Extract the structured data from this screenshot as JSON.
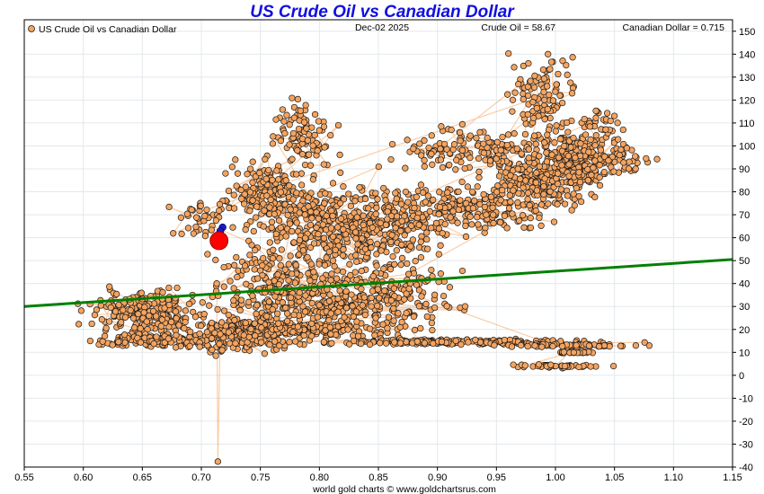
{
  "chart_data": {
    "type": "scatter",
    "title": "US Crude Oil vs Canadian Dollar",
    "legend_label": "US Crude Oil vs Canadian Dollar",
    "date_label": "Dec-02  2025",
    "oil_readout": "Crude Oil = 58.67",
    "cad_readout": "Canadian Dollar = 0.715",
    "footer": "world gold charts © www.goldchartsrus.com",
    "xlabel": "",
    "ylabel": "",
    "xlim": [
      0.55,
      1.15
    ],
    "ylim": [
      -40,
      155
    ],
    "x_ticks": [
      0.55,
      0.6,
      0.65,
      0.7,
      0.75,
      0.8,
      0.85,
      0.9,
      0.95,
      1.0,
      1.05,
      1.1,
      1.15
    ],
    "x_tick_labels": [
      "0.55",
      "0.60",
      "0.65",
      "0.70",
      "0.75",
      "0.80",
      "0.85",
      "0.90",
      "0.95",
      "1.00",
      "1.05",
      "1.10",
      "1.15"
    ],
    "y_ticks": [
      -40,
      -30,
      -20,
      -10,
      0,
      10,
      20,
      30,
      40,
      50,
      60,
      70,
      80,
      90,
      100,
      110,
      120,
      130,
      140,
      150
    ],
    "y_tick_labels": [
      "-40",
      "-30",
      "-20",
      "-10",
      "0",
      "10",
      "20",
      "30",
      "40",
      "50",
      "60",
      "70",
      "80",
      "90",
      "100",
      "110",
      "120",
      "130",
      "140",
      "150"
    ],
    "grid": true,
    "legend_position": "top-left",
    "colors": {
      "points": "#f4a460",
      "point_edge": "#1a1a1a",
      "path": "#f4a460",
      "trend": "#008000",
      "current": "#ff0000",
      "previous": "#1a1acc",
      "title": "#1010e0"
    },
    "trend_line": {
      "x": [
        0.55,
        1.15
      ],
      "y": [
        30,
        50.5
      ]
    },
    "current_point": {
      "x": 0.715,
      "y": 58.67
    },
    "previous_points": [
      {
        "x": 0.718,
        "y": 64.5
      },
      {
        "x": 0.716,
        "y": 62.8
      }
    ],
    "path_outliers": [
      {
        "x": 0.713,
        "y": 40
      },
      {
        "x": 0.714,
        "y": -37.6
      },
      {
        "x": 0.716,
        "y": 18
      }
    ],
    "clusters": [
      {
        "cx": 0.655,
        "cy": 27,
        "sx": 0.025,
        "sy": 5,
        "n": 220
      },
      {
        "cx": 0.655,
        "cy": 15,
        "sx": 0.03,
        "sy": 1.5,
        "n": 120
      },
      {
        "cx": 0.735,
        "cy": 17,
        "sx": 0.025,
        "sy": 4,
        "n": 170
      },
      {
        "cx": 0.79,
        "cy": 20,
        "sx": 0.045,
        "sy": 2,
        "n": 200
      },
      {
        "cx": 0.83,
        "cy": 30,
        "sx": 0.05,
        "sy": 4,
        "n": 180
      },
      {
        "cx": 0.91,
        "cy": 14.5,
        "sx": 0.065,
        "sy": 0.6,
        "n": 200
      },
      {
        "cx": 1.01,
        "cy": 13,
        "sx": 0.035,
        "sy": 0.4,
        "n": 60
      },
      {
        "cx": 1.0,
        "cy": 4,
        "sx": 0.02,
        "sy": 0.4,
        "n": 45
      },
      {
        "cx": 1.015,
        "cy": 10,
        "sx": 0.012,
        "sy": 0.3,
        "n": 18
      },
      {
        "cx": 0.77,
        "cy": 40,
        "sx": 0.035,
        "sy": 10,
        "n": 260
      },
      {
        "cx": 0.755,
        "cy": 80,
        "sx": 0.018,
        "sy": 7,
        "n": 150
      },
      {
        "cx": 0.785,
        "cy": 105,
        "sx": 0.012,
        "sy": 8,
        "n": 90
      },
      {
        "cx": 0.8,
        "cy": 70,
        "sx": 0.035,
        "sy": 9,
        "n": 220
      },
      {
        "cx": 0.84,
        "cy": 60,
        "sx": 0.03,
        "sy": 8,
        "n": 160
      },
      {
        "cx": 0.87,
        "cy": 70,
        "sx": 0.03,
        "sy": 7,
        "n": 130
      },
      {
        "cx": 0.93,
        "cy": 72,
        "sx": 0.035,
        "sy": 5,
        "n": 160
      },
      {
        "cx": 0.985,
        "cy": 85,
        "sx": 0.025,
        "sy": 6,
        "n": 200
      },
      {
        "cx": 1.02,
        "cy": 95,
        "sx": 0.02,
        "sy": 6,
        "n": 220
      },
      {
        "cx": 0.93,
        "cy": 98,
        "sx": 0.035,
        "sy": 5,
        "n": 140
      },
      {
        "cx": 0.99,
        "cy": 120,
        "sx": 0.015,
        "sy": 10,
        "n": 110
      },
      {
        "cx": 0.7,
        "cy": 68,
        "sx": 0.012,
        "sy": 5,
        "n": 35
      },
      {
        "cx": 0.86,
        "cy": 40,
        "sx": 0.03,
        "sy": 5,
        "n": 90
      },
      {
        "cx": 1.06,
        "cy": 95,
        "sx": 0.012,
        "sy": 4,
        "n": 30
      },
      {
        "cx": 1.04,
        "cy": 110,
        "sx": 0.008,
        "sy": 3,
        "n": 25
      }
    ]
  }
}
